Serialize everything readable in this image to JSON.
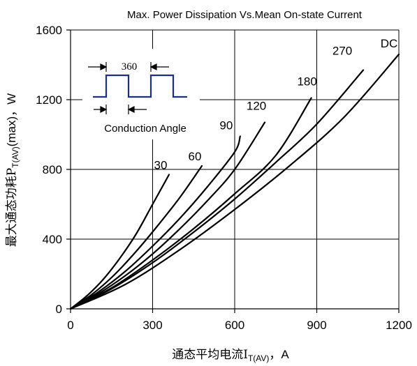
{
  "chart_data": {
    "type": "line",
    "title": "Max. Power Dissipation Vs.Mean On-state Current",
    "xlabel_prefix": "通态平均电流I",
    "xlabel_sub": "T(AV)",
    "xlabel_suffix": "，A",
    "ylabel_prefix": "最大通态功耗P",
    "ylabel_sub": "T(AV)",
    "ylabel_suffix": "(max)，W",
    "xlim": [
      0,
      1200
    ],
    "ylim": [
      0,
      1600
    ],
    "xticks": [
      "0",
      "300",
      "600",
      "900",
      "1200"
    ],
    "yticks": [
      "0",
      "400",
      "800",
      "1200",
      "1600"
    ],
    "grid": true,
    "series": [
      {
        "name": "30",
        "x": [
          0,
          60,
          120,
          180,
          240,
          300,
          360
        ],
        "y": [
          0,
          75,
          170,
          290,
          430,
          600,
          770
        ]
      },
      {
        "name": "60",
        "x": [
          0,
          80,
          160,
          240,
          320,
          400,
          480
        ],
        "y": [
          0,
          85,
          195,
          330,
          480,
          640,
          820
        ]
      },
      {
        "name": "90",
        "x": [
          0,
          100,
          200,
          300,
          400,
          500,
          600,
          620
        ],
        "y": [
          0,
          95,
          215,
          360,
          520,
          700,
          900,
          990
        ]
      },
      {
        "name": "120",
        "x": [
          0,
          100,
          200,
          300,
          400,
          500,
          600,
          710
        ],
        "y": [
          0,
          85,
          190,
          315,
          460,
          620,
          800,
          1070
        ]
      },
      {
        "name": "180",
        "x": [
          0,
          150,
          300,
          450,
          600,
          750,
          880
        ],
        "y": [
          0,
          120,
          280,
          460,
          660,
          880,
          1210
        ]
      },
      {
        "name": "270",
        "x": [
          0,
          150,
          300,
          450,
          600,
          750,
          900,
          1070
        ],
        "y": [
          0,
          115,
          265,
          440,
          630,
          840,
          1060,
          1370
        ]
      },
      {
        "name": "DC",
        "x": [
          0,
          200,
          400,
          600,
          800,
          1000,
          1200
        ],
        "y": [
          0,
          140,
          340,
          570,
          820,
          1100,
          1460
        ]
      }
    ],
    "inset": {
      "period_label": "360",
      "angle_label": "Conduction Angle"
    }
  }
}
